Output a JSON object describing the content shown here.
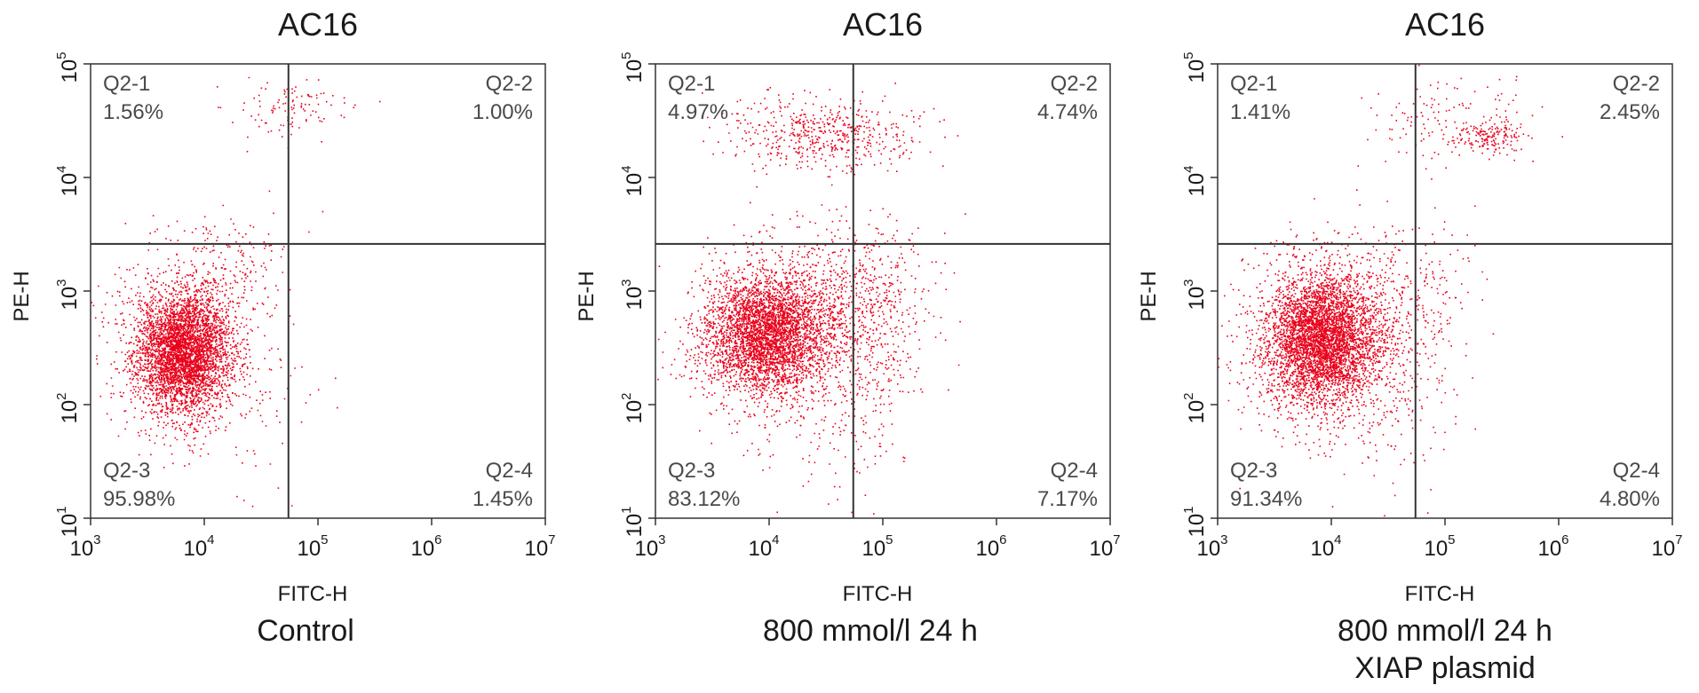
{
  "chart_data": [
    {
      "type": "scatter",
      "title": "AC16",
      "xlabel": "FITC-H",
      "ylabel": "PE-H",
      "xscale": "log",
      "yscale": "log",
      "xlim": [
        1000,
        10000000
      ],
      "ylim": [
        10,
        100000
      ],
      "x_ticks": [
        {
          "base": "10",
          "exp": "3"
        },
        {
          "base": "10",
          "exp": "4"
        },
        {
          "base": "10",
          "exp": "5"
        },
        {
          "base": "10",
          "exp": "6"
        },
        {
          "base": "10",
          "exp": "7"
        }
      ],
      "y_ticks": [
        {
          "base": "10",
          "exp": "1"
        },
        {
          "base": "10",
          "exp": "2"
        },
        {
          "base": "10",
          "exp": "3"
        },
        {
          "base": "10",
          "exp": "4"
        },
        {
          "base": "10",
          "exp": "5"
        }
      ],
      "gate_x": 55000,
      "gate_y": 2600,
      "point_color": "#e8001a",
      "quadrants": [
        {
          "name": "Q2-1",
          "percent": "1.56%"
        },
        {
          "name": "Q2-2",
          "percent": "1.00%"
        },
        {
          "name": "Q2-3",
          "percent": "95.98%"
        },
        {
          "name": "Q2-4",
          "percent": "1.45%"
        }
      ],
      "caption": [
        "Control"
      ],
      "clusters": [
        {
          "cx": 6500,
          "cy": 300,
          "sx": 0.2,
          "sy": 0.26,
          "n": 3600
        },
        {
          "cx": 6500,
          "cy": 300,
          "sx": 0.34,
          "sy": 0.42,
          "n": 900
        },
        {
          "cx": 20000,
          "cy": 1800,
          "sx": 0.25,
          "sy": 0.22,
          "n": 110
        },
        {
          "cx": 60000,
          "cy": 42000,
          "sx": 0.28,
          "sy": 0.12,
          "n": 110
        },
        {
          "cx": 30000,
          "cy": 150,
          "sx": 0.3,
          "sy": 0.55,
          "n": 60
        }
      ]
    },
    {
      "type": "scatter",
      "title": "AC16",
      "xlabel": "FITC-H",
      "ylabel": "PE-H",
      "xscale": "log",
      "yscale": "log",
      "xlim": [
        1000,
        10000000
      ],
      "ylim": [
        10,
        100000
      ],
      "x_ticks": [
        {
          "base": "10",
          "exp": "3"
        },
        {
          "base": "10",
          "exp": "4"
        },
        {
          "base": "10",
          "exp": "5"
        },
        {
          "base": "10",
          "exp": "6"
        },
        {
          "base": "10",
          "exp": "7"
        }
      ],
      "y_ticks": [
        {
          "base": "10",
          "exp": "1"
        },
        {
          "base": "10",
          "exp": "2"
        },
        {
          "base": "10",
          "exp": "3"
        },
        {
          "base": "10",
          "exp": "4"
        },
        {
          "base": "10",
          "exp": "5"
        }
      ],
      "gate_x": 55000,
      "gate_y": 2600,
      "point_color": "#e8001a",
      "quadrants": [
        {
          "name": "Q2-1",
          "percent": "4.97%"
        },
        {
          "name": "Q2-2",
          "percent": "4.74%"
        },
        {
          "name": "Q2-3",
          "percent": "83.12%"
        },
        {
          "name": "Q2-4",
          "percent": "7.17%"
        }
      ],
      "caption": [
        "800 mmol/l  24 h"
      ],
      "clusters": [
        {
          "cx": 9000,
          "cy": 420,
          "sx": 0.26,
          "sy": 0.25,
          "n": 3200
        },
        {
          "cx": 14000,
          "cy": 500,
          "sx": 0.42,
          "sy": 0.4,
          "n": 1100
        },
        {
          "cx": 70000,
          "cy": 900,
          "sx": 0.3,
          "sy": 0.35,
          "n": 450
        },
        {
          "cx": 30000,
          "cy": 24000,
          "sx": 0.4,
          "sy": 0.16,
          "n": 550
        },
        {
          "cx": 40000,
          "cy": 150,
          "sx": 0.35,
          "sy": 0.5,
          "n": 300
        }
      ]
    },
    {
      "type": "scatter",
      "title": "AC16",
      "xlabel": "FITC-H",
      "ylabel": "PE-H",
      "xscale": "log",
      "yscale": "log",
      "xlim": [
        1000,
        10000000
      ],
      "ylim": [
        10,
        100000
      ],
      "x_ticks": [
        {
          "base": "10",
          "exp": "3"
        },
        {
          "base": "10",
          "exp": "4"
        },
        {
          "base": "10",
          "exp": "5"
        },
        {
          "base": "10",
          "exp": "6"
        },
        {
          "base": "10",
          "exp": "7"
        }
      ],
      "y_ticks": [
        {
          "base": "10",
          "exp": "1"
        },
        {
          "base": "10",
          "exp": "2"
        },
        {
          "base": "10",
          "exp": "3"
        },
        {
          "base": "10",
          "exp": "4"
        },
        {
          "base": "10",
          "exp": "5"
        }
      ],
      "gate_x": 55000,
      "gate_y": 2600,
      "point_color": "#e8001a",
      "quadrants": [
        {
          "name": "Q2-1",
          "percent": "1.41%"
        },
        {
          "name": "Q2-2",
          "percent": "2.45%"
        },
        {
          "name": "Q2-3",
          "percent": "91.34%"
        },
        {
          "name": "Q2-4",
          "percent": "4.80%"
        }
      ],
      "caption": [
        "800 mmol/l  24 h",
        "XIAP plasmid"
      ],
      "clusters": [
        {
          "cx": 8000,
          "cy": 380,
          "sx": 0.24,
          "sy": 0.28,
          "n": 3600
        },
        {
          "cx": 10000,
          "cy": 400,
          "sx": 0.4,
          "sy": 0.42,
          "n": 1200
        },
        {
          "cx": 40000,
          "cy": 1000,
          "sx": 0.3,
          "sy": 0.3,
          "n": 200
        },
        {
          "cx": 260000,
          "cy": 23000,
          "sx": 0.14,
          "sy": 0.07,
          "n": 150
        },
        {
          "cx": 120000,
          "cy": 30000,
          "sx": 0.35,
          "sy": 0.2,
          "n": 150
        },
        {
          "cx": 30000,
          "cy": 150,
          "sx": 0.35,
          "sy": 0.5,
          "n": 150
        }
      ]
    }
  ]
}
